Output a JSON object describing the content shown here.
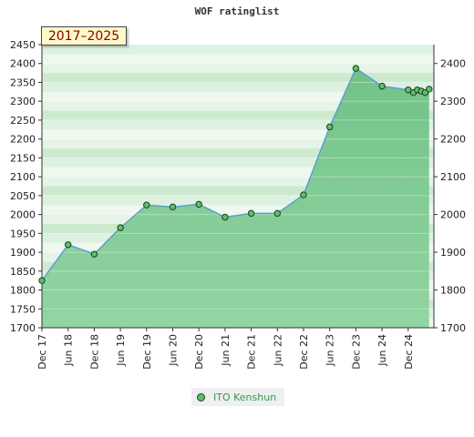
{
  "chart_data": {
    "type": "line",
    "title": "WOF ratinglist",
    "badge": "2017–2025",
    "ylim": [
      1700,
      2450
    ],
    "y_left_ticks": [
      1700,
      1750,
      1800,
      1850,
      1900,
      1950,
      2000,
      2050,
      2100,
      2150,
      2200,
      2250,
      2300,
      2350,
      2400,
      2450
    ],
    "y_right_ticks": [
      1700,
      1800,
      1900,
      2000,
      2100,
      2200,
      2300,
      2400
    ],
    "x_tick_labels": [
      "Dec 17",
      "Jun 18",
      "Dec 18",
      "Jun 19",
      "Dec 19",
      "Jun 20",
      "Dec 20",
      "Jun 21",
      "Dec 21",
      "Jun 22",
      "Dec 22",
      "Jun 23",
      "Dec 23",
      "Jun 24",
      "Dec 24"
    ],
    "series": [
      {
        "name": "ITO Kenshun",
        "color": "#5fbf6f",
        "points": [
          {
            "x": 0,
            "y": 1825
          },
          {
            "x": 1,
            "y": 1920
          },
          {
            "x": 2,
            "y": 1895
          },
          {
            "x": 3,
            "y": 1965
          },
          {
            "x": 4,
            "y": 2025
          },
          {
            "x": 5,
            "y": 2020
          },
          {
            "x": 6,
            "y": 2027
          },
          {
            "x": 7,
            "y": 1993
          },
          {
            "x": 8,
            "y": 2003
          },
          {
            "x": 9,
            "y": 2003
          },
          {
            "x": 10,
            "y": 2052
          },
          {
            "x": 11,
            "y": 2232
          },
          {
            "x": 12,
            "y": 2387
          },
          {
            "x": 13,
            "y": 2340
          },
          {
            "x": 14,
            "y": 2330
          },
          {
            "x": 14.2,
            "y": 2323
          },
          {
            "x": 14.35,
            "y": 2330
          },
          {
            "x": 14.5,
            "y": 2327
          },
          {
            "x": 14.65,
            "y": 2323
          },
          {
            "x": 14.8,
            "y": 2332
          }
        ]
      }
    ],
    "grid": true,
    "legend_position": "bottom-center"
  }
}
